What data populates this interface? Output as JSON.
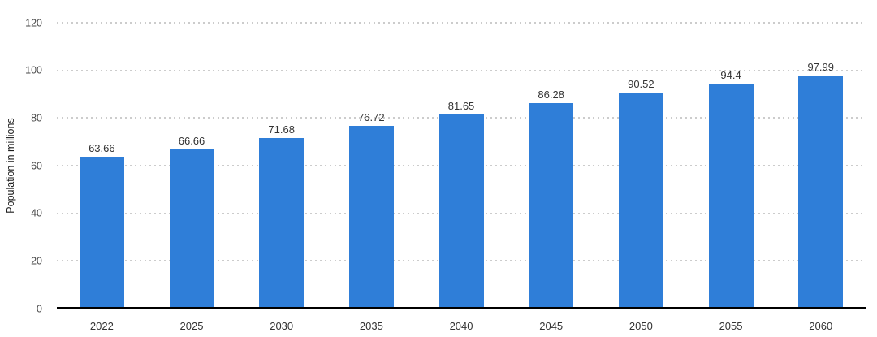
{
  "chart_data": {
    "type": "bar",
    "title": "",
    "xlabel": "",
    "ylabel": "Population in millions",
    "categories": [
      "2022",
      "2025",
      "2030",
      "2035",
      "2040",
      "2045",
      "2050",
      "2055",
      "2060"
    ],
    "values": [
      63.66,
      66.66,
      71.68,
      76.72,
      81.65,
      86.28,
      90.52,
      94.4,
      97.99
    ],
    "value_labels": [
      "63.66",
      "66.66",
      "71.68",
      "76.72",
      "81.65",
      "86.28",
      "90.52",
      "94.4",
      "97.99"
    ],
    "ylim": [
      0,
      120
    ],
    "ytick_step": 20,
    "ytick_labels": [
      "0",
      "20",
      "40",
      "60",
      "80",
      "100",
      "120"
    ],
    "grid": "dotted-horizontal",
    "legend": "none",
    "bar_color": "#2f7ed8",
    "axis_line_color": "#000000",
    "gridline_color": "#cccccc",
    "tick_label_color": "#4a4a4a",
    "value_label_color": "#333333",
    "background": "#ffffff"
  }
}
